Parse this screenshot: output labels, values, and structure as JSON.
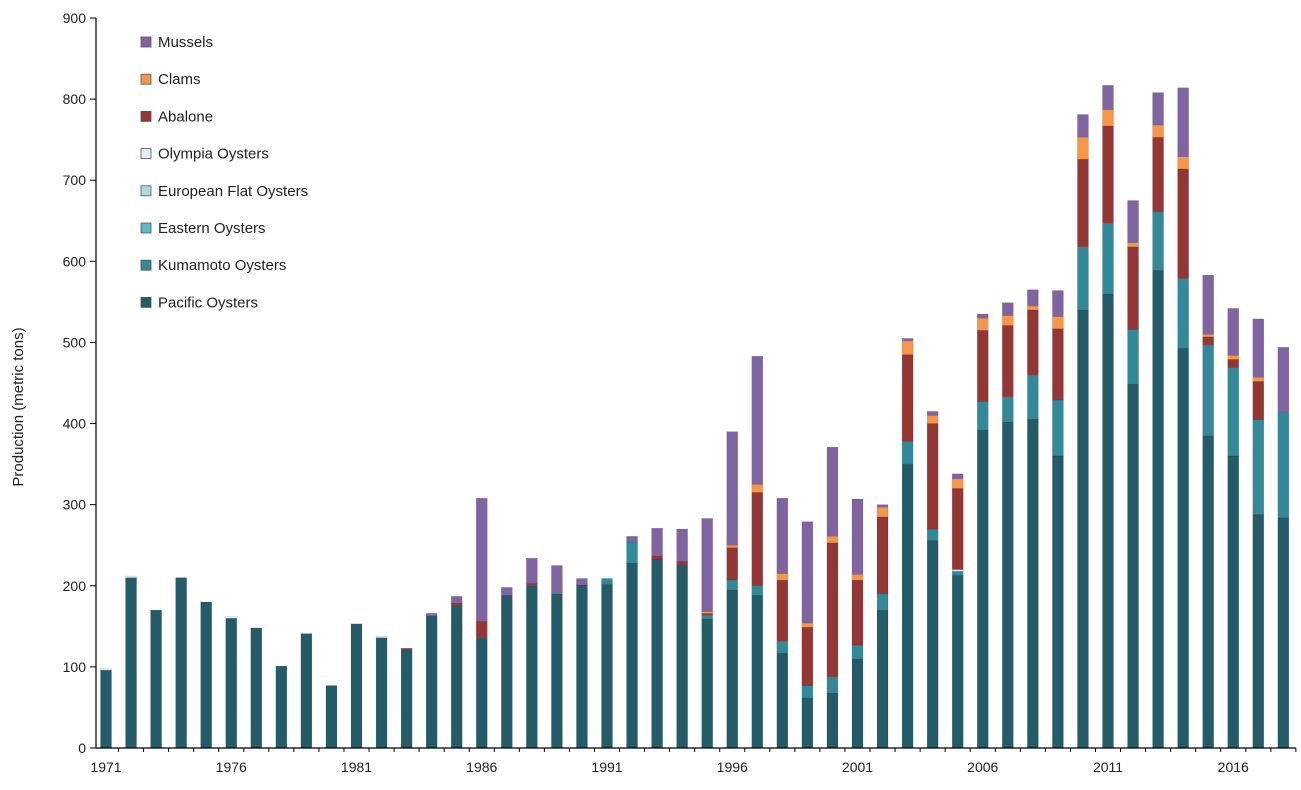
{
  "chart_data": {
    "type": "bar",
    "stacked": true,
    "title": "",
    "xlabel": "",
    "ylabel": "Production (metric tons)",
    "ylim": [
      0,
      900
    ],
    "yticks": [
      0,
      100,
      200,
      300,
      400,
      500,
      600,
      700,
      800,
      900
    ],
    "xtick_labels": [
      "1971",
      "1976",
      "1981",
      "1986",
      "1991",
      "1996",
      "2001",
      "2006",
      "2011",
      "2016"
    ],
    "grid": false,
    "legend_position": "top-left",
    "categories": [
      1971,
      1972,
      1973,
      1974,
      1975,
      1976,
      1977,
      1978,
      1979,
      1980,
      1981,
      1982,
      1983,
      1984,
      1985,
      1986,
      1987,
      1988,
      1989,
      1990,
      1991,
      1992,
      1993,
      1994,
      1995,
      1996,
      1997,
      1998,
      1999,
      2000,
      2001,
      2002,
      2003,
      2004,
      2005,
      2006,
      2007,
      2008,
      2009,
      2010,
      2011,
      2012,
      2013,
      2014,
      2015,
      2016,
      2017,
      2018
    ],
    "series": [
      {
        "name": "Pacific Oysters",
        "color": "#235c68",
        "values": [
          96,
          210,
          170,
          210,
          180,
          160,
          148,
          101,
          141,
          77,
          153,
          136,
          121,
          163,
          175,
          136,
          188,
          200,
          190,
          201,
          202,
          228,
          233,
          226,
          159,
          195,
          188,
          117,
          62,
          68,
          110,
          170,
          350,
          256,
          213,
          392,
          402,
          405,
          360,
          540,
          560,
          449,
          589,
          493,
          385,
          360,
          288,
          284
        ]
      },
      {
        "name": "Kumamoto Oysters",
        "color": "#31899a",
        "values": [
          0,
          0,
          0,
          0,
          0,
          0,
          0,
          0,
          0,
          0,
          0,
          0,
          0,
          0,
          0,
          0,
          0,
          0,
          0,
          0,
          7,
          26,
          0,
          0,
          5,
          12,
          12,
          15,
          15,
          20,
          17,
          20,
          28,
          14,
          5,
          35,
          31,
          55,
          69,
          78,
          87,
          67,
          72,
          86,
          112,
          109,
          117,
          130
        ]
      },
      {
        "name": "Eastern Oysters",
        "color": "#5fb8c8",
        "values": [
          0,
          0,
          0,
          0,
          0,
          0,
          0,
          0,
          0,
          0,
          0,
          0,
          0,
          0,
          0,
          0,
          0,
          0,
          0,
          0,
          0,
          0,
          0,
          0,
          0,
          0,
          0,
          0,
          0,
          0,
          0,
          0,
          0,
          0,
          0,
          0,
          0,
          0,
          0,
          0,
          0,
          0,
          0,
          0,
          0,
          0,
          0,
          0
        ]
      },
      {
        "name": "European Flat Oysters",
        "color": "#a9dbe4",
        "values": [
          0,
          0,
          0,
          0,
          0,
          0,
          0,
          0,
          0,
          0,
          0,
          0,
          0,
          0,
          0,
          0,
          0,
          0,
          0,
          0,
          0,
          0,
          0,
          0,
          0,
          0,
          0,
          0,
          0,
          0,
          0,
          0,
          0,
          0,
          0,
          0,
          0,
          0,
          0,
          0,
          0,
          0,
          0,
          0,
          0,
          0,
          0,
          0
        ]
      },
      {
        "name": "Olympia Oysters",
        "color": "#dff1f4",
        "values": [
          2,
          2,
          0,
          0,
          0,
          2,
          0,
          0,
          0,
          0,
          0,
          2,
          0,
          0,
          0,
          0,
          0,
          0,
          0,
          0,
          0,
          0,
          0,
          0,
          0,
          0,
          0,
          0,
          0,
          0,
          0,
          0,
          0,
          0,
          2,
          0,
          0,
          0,
          0,
          0,
          0,
          0,
          0,
          0,
          0,
          0,
          0,
          0
        ]
      },
      {
        "name": "Abalone",
        "color": "#943634",
        "values": [
          0,
          0,
          0,
          0,
          0,
          0,
          0,
          0,
          0,
          0,
          0,
          0,
          2,
          0,
          4,
          20,
          0,
          3,
          0,
          0,
          0,
          0,
          4,
          4,
          2,
          40,
          115,
          75,
          72,
          165,
          80,
          95,
          107,
          130,
          100,
          88,
          88,
          80,
          88,
          108,
          120,
          102,
          92,
          135,
          10,
          10,
          47,
          0
        ]
      },
      {
        "name": "Clams",
        "color": "#f79646",
        "values": [
          0,
          0,
          0,
          0,
          0,
          0,
          0,
          0,
          0,
          0,
          0,
          0,
          0,
          0,
          0,
          0,
          0,
          0,
          0,
          0,
          0,
          0,
          0,
          0,
          2,
          3,
          10,
          8,
          5,
          8,
          7,
          12,
          17,
          10,
          12,
          15,
          12,
          5,
          15,
          27,
          20,
          5,
          15,
          15,
          3,
          5,
          5,
          0
        ]
      },
      {
        "name": "Mussels",
        "color": "#8064a2",
        "values": [
          0,
          0,
          0,
          0,
          0,
          0,
          0,
          0,
          0,
          0,
          0,
          0,
          0,
          3,
          8,
          152,
          10,
          31,
          35,
          8,
          0,
          7,
          34,
          40,
          115,
          140,
          158,
          93,
          125,
          110,
          93,
          3,
          3,
          5,
          6,
          5,
          16,
          20,
          32,
          28,
          30,
          52,
          40,
          85,
          73,
          58,
          72,
          80
        ]
      }
    ]
  }
}
